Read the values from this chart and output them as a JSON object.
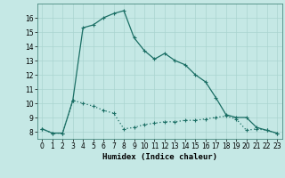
{
  "title": "",
  "xlabel": "Humidex (Indice chaleur)",
  "ylabel": "",
  "bg_color": "#c5e8e5",
  "line1_color": "#1a6e64",
  "line2_color": "#1a6e64",
  "grid_color": "#aad4d0",
  "line1_x": [
    0,
    1,
    2,
    3,
    4,
    5,
    6,
    7,
    8,
    9,
    10,
    11,
    12,
    13,
    14,
    15,
    16,
    17,
    18,
    19,
    20,
    21,
    22,
    23
  ],
  "line1_y": [
    8.2,
    7.9,
    7.9,
    10.2,
    15.3,
    15.5,
    16.0,
    16.3,
    16.5,
    14.6,
    13.7,
    13.1,
    13.5,
    13.0,
    12.7,
    12.0,
    11.5,
    10.4,
    9.2,
    9.0,
    9.0,
    8.3,
    8.1,
    7.9
  ],
  "line2_x": [
    0,
    1,
    2,
    3,
    4,
    5,
    6,
    7,
    8,
    9,
    10,
    11,
    12,
    13,
    14,
    15,
    16,
    17,
    18,
    19,
    20,
    21,
    22,
    23
  ],
  "line2_y": [
    8.2,
    7.9,
    7.9,
    10.2,
    10.0,
    9.8,
    9.5,
    9.3,
    8.2,
    8.3,
    8.5,
    8.6,
    8.7,
    8.7,
    8.8,
    8.8,
    8.9,
    9.0,
    9.1,
    8.9,
    8.1,
    8.2,
    8.1,
    7.9
  ],
  "xlim": [
    -0.5,
    23.5
  ],
  "ylim": [
    7.5,
    17.0
  ],
  "yticks": [
    8,
    9,
    10,
    11,
    12,
    13,
    14,
    15,
    16
  ],
  "xticks": [
    0,
    1,
    2,
    3,
    4,
    5,
    6,
    7,
    8,
    9,
    10,
    11,
    12,
    13,
    14,
    15,
    16,
    17,
    18,
    19,
    20,
    21,
    22,
    23
  ],
  "marker": "+",
  "markersize": 3,
  "linewidth": 0.9,
  "xlabel_fontsize": 6.5,
  "tick_fontsize": 5.5
}
